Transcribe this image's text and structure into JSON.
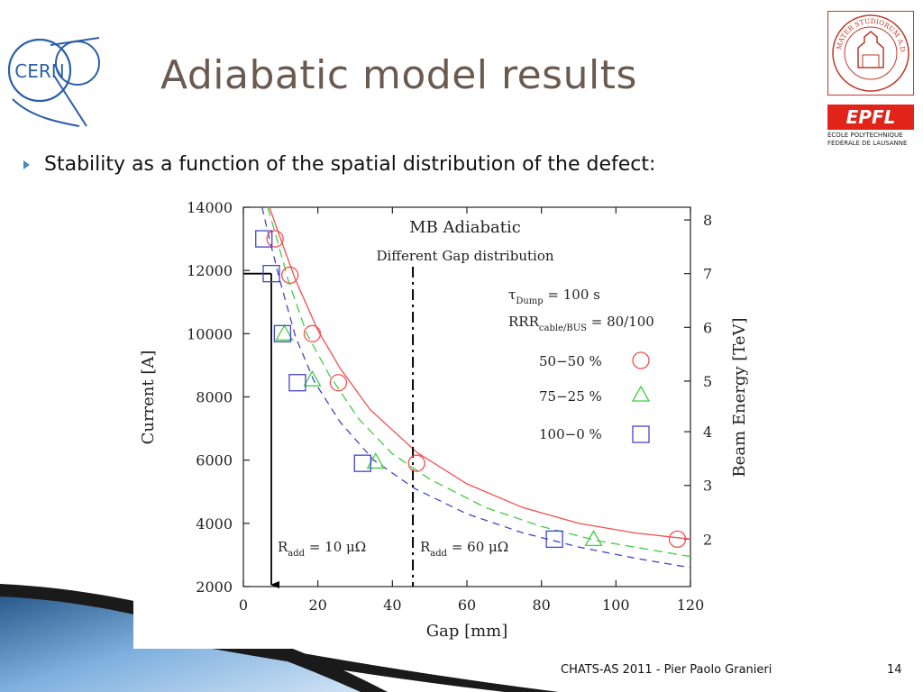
{
  "slide": {
    "title": "Adiabatic model results",
    "bullet": "Stability as a function of the spatial distribution of the defect:",
    "footer": "CHATS-AS 2011 - Pier Paolo Granieri",
    "page_number": "14"
  },
  "logos": {
    "cern": "CERN",
    "unibo": "ALMA MATER STUDIORUM A.D. 1088",
    "epfl": "EPFL",
    "epfl_sub": "ÉCOLE POLYTECHNIQUE FÉDÉRALE DE LAUSANNE"
  },
  "chart_data": {
    "type": "scatter",
    "title": "MB Adiabatic",
    "subtitle": "Different Gap distribution",
    "xlabel": "Gap [mm]",
    "ylabel": "Current [A]",
    "y2label": "Beam Energy [TeV]",
    "xlim": [
      0,
      120
    ],
    "ylim": [
      2000,
      14000
    ],
    "x_ticks": [
      0,
      20,
      40,
      60,
      80,
      100,
      120
    ],
    "y_ticks": [
      2000,
      4000,
      6000,
      8000,
      10000,
      12000,
      14000
    ],
    "y2_ticks": [
      {
        "label": "2",
        "current": 3500
      },
      {
        "label": "3",
        "current": 5200
      },
      {
        "label": "4",
        "current": 6900
      },
      {
        "label": "5",
        "current": 8500
      },
      {
        "label": "6",
        "current": 10200
      },
      {
        "label": "7",
        "current": 11900
      },
      {
        "label": "8",
        "current": 13600
      }
    ],
    "grid": false,
    "legend_placement": "right",
    "params": [
      {
        "main": "τ",
        "sub": "Dump",
        "tail": " = 100 s"
      },
      {
        "main": "RRR",
        "sub": "cable/BUS",
        "tail": " = 80/100"
      }
    ],
    "series": [
      {
        "name": "50−50 %",
        "marker": "circle",
        "color": "#f05050",
        "points": [
          [
            8.5,
            13000
          ],
          [
            12.5,
            11850
          ],
          [
            18.5,
            10000
          ],
          [
            25.5,
            8450
          ],
          [
            46.5,
            5900
          ],
          [
            116.5,
            3500
          ]
        ],
        "curve": [
          [
            7,
            14000
          ],
          [
            10,
            13000
          ],
          [
            14,
            11700
          ],
          [
            20,
            10100
          ],
          [
            26,
            8900
          ],
          [
            34,
            7600
          ],
          [
            46.5,
            6250
          ],
          [
            60,
            5250
          ],
          [
            75,
            4500
          ],
          [
            90,
            4000
          ],
          [
            105,
            3700
          ],
          [
            120,
            3500
          ]
        ]
      },
      {
        "name": "75−25 %",
        "marker": "triangle",
        "color": "#44cc44",
        "points": [
          [
            11,
            10000
          ],
          [
            18.5,
            8550
          ],
          [
            35.5,
            5950
          ],
          [
            94,
            3500
          ]
        ],
        "curve": [
          [
            6.5,
            14000
          ],
          [
            9,
            13000
          ],
          [
            12,
            11700
          ],
          [
            17,
            10000
          ],
          [
            23,
            8700
          ],
          [
            31,
            7300
          ],
          [
            40,
            6200
          ],
          [
            50,
            5400
          ],
          [
            65,
            4500
          ],
          [
            80,
            3900
          ],
          [
            95,
            3450
          ],
          [
            110,
            3150
          ],
          [
            120,
            2950
          ]
        ]
      },
      {
        "name": "100−0 %",
        "marker": "square",
        "color": "#4444cc",
        "points": [
          [
            5.5,
            13000
          ],
          [
            7.5,
            11900
          ],
          [
            10.5,
            10000
          ],
          [
            14.5,
            8450
          ],
          [
            32,
            5900
          ],
          [
            83.5,
            3500
          ]
        ],
        "curve": [
          [
            5,
            14000
          ],
          [
            7,
            13000
          ],
          [
            10,
            11600
          ],
          [
            14,
            9900
          ],
          [
            19,
            8500
          ],
          [
            26,
            7200
          ],
          [
            35,
            6000
          ],
          [
            46,
            5100
          ],
          [
            60,
            4300
          ],
          [
            75,
            3700
          ],
          [
            90,
            3250
          ],
          [
            105,
            2900
          ],
          [
            120,
            2600
          ]
        ]
      }
    ],
    "annotations": [
      {
        "id": "r10",
        "main": "R",
        "sub": "add",
        "tail": " = 10 μΩ"
      },
      {
        "id": "r60",
        "main": "R",
        "sub": "add",
        "tail": " = 60 μΩ"
      }
    ],
    "guides": {
      "arrow_current": 11900,
      "arrow_gap": 7.5,
      "dashed_gap": 45.5
    }
  }
}
